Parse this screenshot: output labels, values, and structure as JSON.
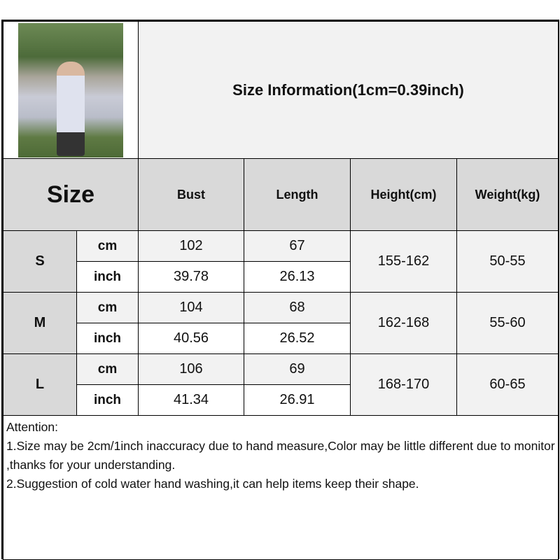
{
  "title": "Size Information(1cm=0.39inch)",
  "headers": {
    "size": "Size",
    "bust": "Bust",
    "length": "Length",
    "height": "Height(cm)",
    "weight": "Weight(kg)"
  },
  "rows": [
    {
      "size": "S",
      "cm": {
        "unit": "cm",
        "bust": "102",
        "length": "67"
      },
      "inch": {
        "unit": "inch",
        "bust": "39.78",
        "length": "26.13"
      },
      "height": "155-162",
      "weight": "50-55"
    },
    {
      "size": "M",
      "cm": {
        "unit": "cm",
        "bust": "104",
        "length": "68"
      },
      "inch": {
        "unit": "inch",
        "bust": "40.56",
        "length": "26.52"
      },
      "height": "162-168",
      "weight": "55-60"
    },
    {
      "size": "L",
      "cm": {
        "unit": "cm",
        "bust": "106",
        "length": "69"
      },
      "inch": {
        "unit": "inch",
        "bust": "41.34",
        "length": "26.91"
      },
      "height": "168-170",
      "weight": "60-65"
    }
  ],
  "attention": {
    "heading": "Attention:",
    "line1": "1.Size may be 2cm/1inch inaccuracy due to hand measure,Color may be little different due to monitor ,thanks for your understanding.",
    "line2": "2.Suggestion of cold water hand washing,it can help items keep their shape."
  }
}
